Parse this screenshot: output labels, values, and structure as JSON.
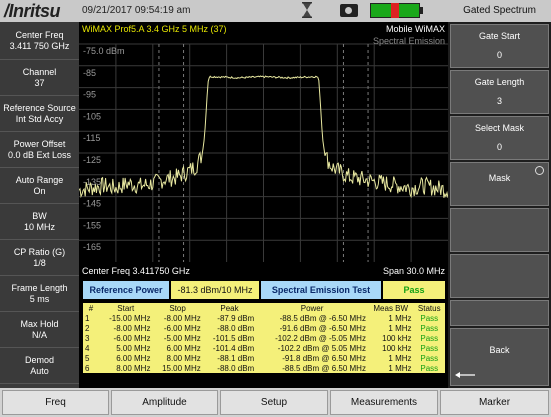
{
  "header": {
    "brand": "/Inritsu",
    "datetime": "09/21/2017 09:54:19 am"
  },
  "left_panel": [
    {
      "label": "Center Freq",
      "value": "3.411 750 GHz"
    },
    {
      "label": "Channel",
      "value": "37"
    },
    {
      "label": "Reference Source",
      "value": "Int Std Accy"
    },
    {
      "label": "Power Offset",
      "value": "0.0 dB Ext Loss"
    },
    {
      "label": "Auto Range",
      "value": "On"
    },
    {
      "label": "BW",
      "value": "10 MHz"
    },
    {
      "label": "CP Ratio (G)",
      "value": "1/8"
    },
    {
      "label": "Frame Length",
      "value": "5 ms"
    },
    {
      "label": "Max Hold",
      "value": "N/A"
    },
    {
      "label": "Demod",
      "value": "Auto"
    }
  ],
  "main": {
    "mode": "WiMAX Prof5.A 3.4 GHz 5 MHz (37)",
    "standard": "Mobile WiMAX",
    "measurement": "Spectral Emission",
    "center_freq": "Center Freq  3.411750 GHz",
    "span": "Span  30.0 MHz"
  },
  "chart_data": {
    "type": "line",
    "xlabel": "",
    "ylabel": "",
    "x_unit": "MHz offset",
    "xlim": [
      -15,
      15
    ],
    "ylim": [
      -175,
      -75
    ],
    "y_ticks": [
      -75.0,
      -85,
      -95,
      -105,
      -115,
      -125,
      -135,
      -145,
      -155,
      -165
    ],
    "tick_labels": [
      "-75.0 dBm",
      "-85",
      "-95",
      "-105",
      "-115",
      "-125",
      "-135",
      "-145",
      "-155",
      "-165"
    ],
    "grid": true,
    "series": [
      {
        "x": [
          -15,
          -14,
          -13,
          -12,
          -11,
          -10,
          -9,
          -8,
          -7,
          -6,
          -5.5,
          -5,
          -4.8,
          -4.6,
          -4.5,
          -4.4,
          -4,
          -2,
          0,
          2,
          4,
          4.4,
          4.5,
          4.6,
          4.8,
          5,
          5.5,
          6,
          7,
          8,
          9,
          10,
          11,
          12,
          13,
          14,
          15
        ],
        "y": [
          -142,
          -141,
          -140,
          -141,
          -139,
          -140,
          -139,
          -137,
          -136,
          -133,
          -131,
          -126,
          -118,
          -100,
          -92,
          -90,
          -90,
          -90.5,
          -90,
          -90.5,
          -90,
          -90,
          -92,
          -100,
          -118,
          -126,
          -131,
          -133,
          -136,
          -137,
          -138,
          -139,
          -140,
          -141,
          -140,
          -141,
          -142
        ]
      }
    ],
    "gate_markers_mhz": [
      -8.5,
      -6.5,
      6.5,
      8.5
    ]
  },
  "results_bar": {
    "ref_label": "Reference Power",
    "ref_value": "-81.3 dBm/10 MHz",
    "test_label": "Spectral Emission Test",
    "status": "Pass"
  },
  "table": {
    "headers": [
      "#",
      "Start",
      "Stop",
      "Peak",
      "Power",
      "Meas BW",
      "Status"
    ],
    "rows": [
      [
        "1",
        "-15.00 MHz",
        "-8.00 MHz",
        "-87.9 dBm",
        "-88.5 dBm @ -6.50 MHz",
        "1 MHz",
        "Pass"
      ],
      [
        "2",
        "-8.00 MHz",
        "-6.00 MHz",
        "-88.0 dBm",
        "-91.6 dBm @ -6.50 MHz",
        "1 MHz",
        "Pass"
      ],
      [
        "3",
        "-6.00 MHz",
        "-5.00 MHz",
        "-101.5 dBm",
        "-102.2 dBm @ -5.05 MHz",
        "100 kHz",
        "Pass"
      ],
      [
        "4",
        "5.00 MHz",
        "6.00 MHz",
        "-101.4 dBm",
        "-102.2 dBm @ 5.05 MHz",
        "100 kHz",
        "Pass"
      ],
      [
        "5",
        "6.00 MHz",
        "8.00 MHz",
        "-88.1 dBm",
        "-91.8 dBm @ 6.50 MHz",
        "1 MHz",
        "Pass"
      ],
      [
        "6",
        "8.00 MHz",
        "15.00 MHz",
        "-88.0 dBm",
        "-88.5 dBm @ 6.50 MHz",
        "1 MHz",
        "Pass"
      ]
    ]
  },
  "right_panel": {
    "title": "Gated Spectrum",
    "buttons": [
      {
        "label": "Gate Start",
        "value": "0"
      },
      {
        "label": "Gate Length",
        "value": "3"
      },
      {
        "label": "Select Mask",
        "value": "0"
      },
      {
        "label": "Mask",
        "value": ""
      }
    ],
    "back_label": "Back"
  },
  "bottom_menu": [
    "Freq",
    "Amplitude",
    "Setup",
    "Measurements",
    "Marker"
  ],
  "colors": {
    "trace": "#e8e8a0",
    "ref_bg": "#a8d8f8",
    "status_bg": "#f4f07a",
    "pass": "#15a015",
    "mode_text": "#e8e800"
  },
  "icons": {
    "sweep": "hourglass-icon",
    "camera": "camera-icon",
    "battery": "battery-icon",
    "back": "back-arrow-icon",
    "mask": "circle-indicator-icon"
  }
}
